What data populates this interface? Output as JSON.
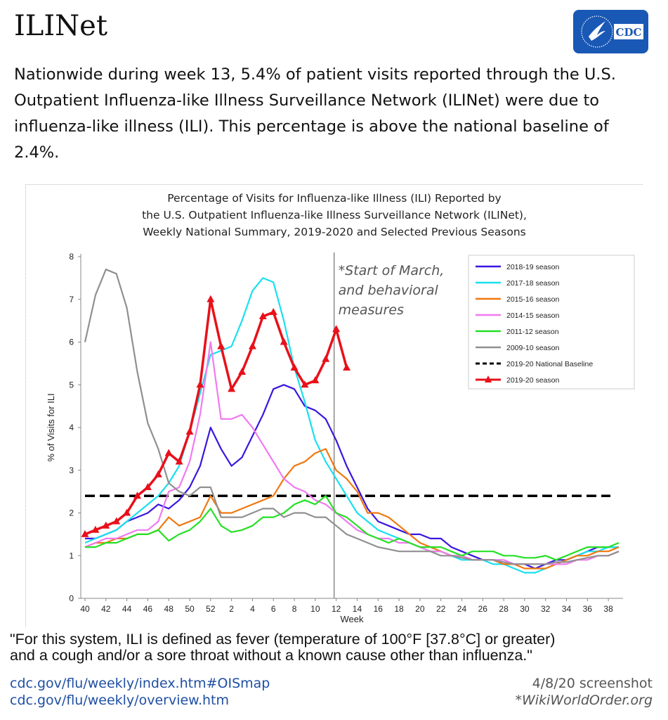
{
  "header": {
    "title": "ILINet",
    "logo_text": "CDC"
  },
  "intro": "Nationwide during week 13, 5.4% of patient visits reported through the U.S. Outpatient Influenza-like Illness Surveillance Network (ILINet) were due to influenza-like illness (ILI). This percentage is above the national baseline of 2.4%.",
  "chart_data": {
    "type": "line",
    "title_lines": [
      "Percentage of Visits for Influenza-like Illness (ILI) Reported by",
      "the U.S. Outpatient Influenza-like Illness Surveillance Network (ILINet),",
      "Weekly National Summary, 2019-2020 and Selected Previous Seasons"
    ],
    "xlabel": "Week",
    "ylabel": "% of Visits for ILI",
    "ylim": [
      0,
      8
    ],
    "yticks": [
      0,
      1,
      2,
      3,
      4,
      5,
      6,
      7,
      8
    ],
    "weeks": [
      40,
      41,
      42,
      43,
      44,
      45,
      46,
      47,
      48,
      49,
      50,
      51,
      52,
      1,
      2,
      3,
      4,
      5,
      6,
      7,
      8,
      9,
      10,
      11,
      12,
      13,
      14,
      15,
      16,
      17,
      18,
      19,
      20,
      21,
      22,
      23,
      24,
      25,
      26,
      27,
      28,
      29,
      30,
      31,
      32,
      33,
      34,
      35,
      36,
      37,
      38,
      39
    ],
    "xtick_labels": [
      "40",
      "42",
      "44",
      "46",
      "48",
      "50",
      "52",
      "2",
      "4",
      "6",
      "8",
      "10",
      "12",
      "14",
      "16",
      "18",
      "20",
      "22",
      "24",
      "26",
      "28",
      "30",
      "32",
      "34",
      "36",
      "38"
    ],
    "legend_position": "top-right",
    "annotation": {
      "lines": [
        "*Start of March,",
        " and behavioral",
        " measures"
      ],
      "week": 11
    },
    "baseline": {
      "name": "2019-20 National Baseline",
      "value": 2.4,
      "color": "#000000"
    },
    "series": [
      {
        "name": "2018-19 season",
        "color": "#3a16e0",
        "values": [
          1.4,
          1.4,
          1.5,
          1.6,
          1.8,
          1.9,
          2.0,
          2.2,
          2.1,
          2.3,
          2.6,
          3.1,
          4.0,
          3.5,
          3.1,
          3.3,
          3.8,
          4.3,
          4.9,
          5.0,
          4.9,
          4.5,
          4.4,
          4.2,
          3.7,
          3.1,
          2.6,
          2.1,
          1.8,
          1.7,
          1.6,
          1.5,
          1.5,
          1.4,
          1.4,
          1.2,
          1.1,
          1.0,
          0.9,
          0.9,
          0.8,
          0.8,
          0.8,
          0.7,
          0.8,
          0.9,
          0.9,
          1.0,
          1.1,
          1.2,
          1.2,
          1.2
        ]
      },
      {
        "name": "2017-18 season",
        "color": "#19e0f0",
        "values": [
          1.3,
          1.4,
          1.5,
          1.6,
          1.8,
          2.0,
          2.2,
          2.4,
          2.7,
          3.1,
          3.9,
          4.8,
          5.7,
          5.8,
          5.9,
          6.5,
          7.2,
          7.5,
          7.4,
          6.5,
          5.4,
          4.6,
          3.7,
          3.2,
          2.8,
          2.4,
          2.0,
          1.8,
          1.6,
          1.5,
          1.4,
          1.3,
          1.2,
          1.1,
          1.1,
          1.0,
          0.9,
          0.9,
          0.9,
          0.8,
          0.8,
          0.7,
          0.6,
          0.6,
          0.7,
          0.8,
          0.9,
          1.0,
          1.1,
          1.1,
          1.2,
          1.2
        ]
      },
      {
        "name": "2015-16 season",
        "color": "#f07810",
        "values": [
          1.2,
          1.3,
          1.3,
          1.4,
          1.4,
          1.5,
          1.5,
          1.6,
          1.9,
          1.7,
          1.8,
          1.9,
          2.4,
          2.0,
          2.0,
          2.1,
          2.2,
          2.3,
          2.4,
          2.8,
          3.1,
          3.2,
          3.4,
          3.5,
          3.0,
          2.8,
          2.5,
          2.0,
          2.0,
          1.9,
          1.7,
          1.5,
          1.3,
          1.2,
          1.1,
          1.0,
          1.0,
          0.9,
          0.9,
          0.9,
          0.8,
          0.8,
          0.7,
          0.7,
          0.7,
          0.8,
          0.9,
          1.0,
          1.0,
          1.1,
          1.1,
          1.2
        ]
      },
      {
        "name": "2014-15 season",
        "color": "#f07af0",
        "values": [
          1.2,
          1.3,
          1.4,
          1.4,
          1.5,
          1.6,
          1.6,
          1.8,
          2.5,
          2.6,
          3.2,
          4.3,
          6.0,
          4.2,
          4.2,
          4.3,
          4.0,
          3.6,
          3.2,
          2.8,
          2.6,
          2.5,
          2.3,
          2.2,
          2.0,
          1.8,
          1.6,
          1.5,
          1.4,
          1.4,
          1.3,
          1.3,
          1.2,
          1.1,
          1.1,
          1.0,
          1.0,
          0.9,
          0.9,
          0.9,
          0.9,
          0.8,
          0.8,
          0.8,
          0.8,
          0.8,
          0.8,
          0.9,
          0.9,
          1.0,
          1.0,
          1.1
        ]
      },
      {
        "name": "2011-12 season",
        "color": "#25e025",
        "values": [
          1.2,
          1.2,
          1.3,
          1.3,
          1.4,
          1.5,
          1.5,
          1.6,
          1.35,
          1.5,
          1.6,
          1.8,
          2.1,
          1.7,
          1.55,
          1.6,
          1.7,
          1.9,
          1.9,
          2.0,
          2.2,
          2.3,
          2.2,
          2.4,
          2.0,
          1.9,
          1.7,
          1.5,
          1.4,
          1.3,
          1.4,
          1.3,
          1.2,
          1.2,
          1.2,
          1.1,
          1.0,
          1.1,
          1.1,
          1.1,
          1.0,
          1.0,
          0.95,
          0.95,
          1.0,
          0.9,
          1.0,
          1.1,
          1.2,
          1.2,
          1.2,
          1.3
        ]
      },
      {
        "name": "2009-10 season",
        "color": "#909090",
        "values": [
          6.0,
          7.1,
          7.7,
          7.6,
          6.8,
          5.3,
          4.1,
          3.5,
          2.7,
          2.5,
          2.4,
          2.6,
          2.6,
          1.9,
          1.9,
          1.9,
          2.0,
          2.1,
          2.1,
          1.9,
          2.0,
          2.0,
          1.9,
          1.9,
          1.7,
          1.5,
          1.4,
          1.3,
          1.2,
          1.15,
          1.1,
          1.1,
          1.1,
          1.1,
          1.0,
          1.0,
          0.95,
          0.9,
          0.9,
          0.9,
          0.85,
          0.8,
          0.8,
          0.8,
          0.8,
          0.85,
          0.85,
          0.9,
          0.95,
          1.0,
          1.0,
          1.1
        ]
      },
      {
        "name": "2019-20 season",
        "color": "#e8101a",
        "values": [
          1.5,
          1.6,
          1.7,
          1.8,
          2.0,
          2.4,
          2.6,
          2.9,
          3.4,
          3.2,
          3.9,
          5.0,
          7.0,
          5.9,
          4.9,
          5.3,
          5.9,
          6.6,
          6.7,
          6.0,
          5.4,
          5.0,
          5.1,
          5.6,
          6.3,
          5.4
        ]
      }
    ]
  },
  "footer": {
    "definition_line1": "\"For this system, ILI is defined as fever (temperature of 100°F [37.8°C] or greater)",
    "definition_line2": "and a cough and/or a sore throat without a known cause other than influenza.\"",
    "link1": "cdc.gov/flu/weekly/index.htm#OISmap",
    "link2": "cdc.gov/flu/weekly/overview.htm",
    "stamp1": "4/8/20 screenshot",
    "stamp2": "*WikiWorldOrder.org"
  }
}
